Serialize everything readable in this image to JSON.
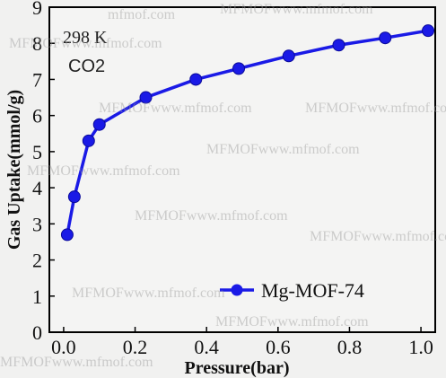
{
  "chart_data": {
    "type": "line",
    "xlabel": "Pressure(bar)",
    "ylabel": "Gas Uptake(mmol/g)",
    "xlim": [
      -0.04,
      1.04
    ],
    "ylim": [
      0,
      9
    ],
    "xticks": [
      "0.0",
      "0.2",
      "0.4",
      "0.6",
      "0.8",
      "1.0"
    ],
    "yticks": [
      "0",
      "1",
      "2",
      "3",
      "4",
      "5",
      "6",
      "7",
      "8",
      "9"
    ],
    "annotations": [
      "298 K",
      "CO2"
    ],
    "legend_position": "lower-right",
    "series": [
      {
        "name": "Mg-MOF-74",
        "color": "#1a1ae6",
        "marker": "circle",
        "x": [
          0.01,
          0.03,
          0.07,
          0.1,
          0.23,
          0.37,
          0.49,
          0.63,
          0.77,
          0.9,
          1.02
        ],
        "y": [
          2.7,
          3.75,
          5.3,
          5.75,
          6.5,
          7.0,
          7.3,
          7.65,
          7.95,
          8.15,
          8.35
        ]
      }
    ]
  },
  "watermarks": [
    "mfmof.com",
    "MFMOFwww.mfmof.com",
    "MFMOFwww.mfmof.com",
    "MFMOFwww.mfmof.com",
    "MFMOFwww.mfmof.com",
    "MFMOFwww.mfmof.com",
    "MFMOFwww.mfmof.com",
    "MFMOFwww.mfmof.com",
    "MFMOFwww.mfmof.com",
    "MFMOFwww.mfmof.com",
    "MFMOFwww.mfmof.com",
    "MFMOFwww.mfmof.com"
  ]
}
